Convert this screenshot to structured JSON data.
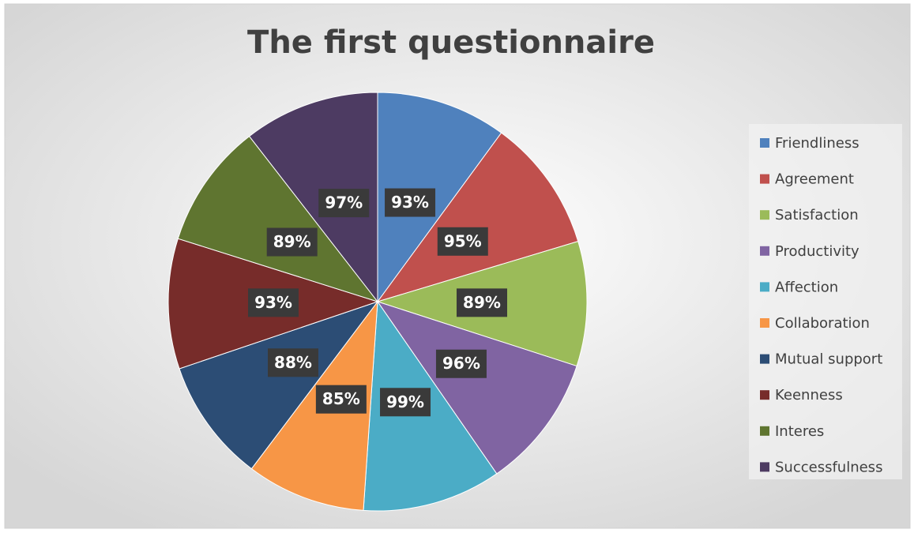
{
  "chart_data": {
    "type": "pie",
    "title": "The first questionnaire",
    "categories": [
      "Friendliness",
      "Agreement",
      "Satisfaction",
      "Productivity",
      "Affection",
      "Collaboration",
      "Mutual support",
      "Keenness",
      "Interes",
      "Successfulness"
    ],
    "values": [
      93,
      95,
      89,
      96,
      99,
      85,
      88,
      93,
      89,
      97
    ],
    "value_labels": [
      "93%",
      "95%",
      "89%",
      "96%",
      "99%",
      "85%",
      "88%",
      "93%",
      "89%",
      "97%"
    ],
    "colors": [
      "#4f81bd",
      "#c0504d",
      "#9bbb59",
      "#8064a2",
      "#4bacc6",
      "#f79646",
      "#2c4d75",
      "#772c2a",
      "#5f7530",
      "#4d3b62"
    ],
    "legend": "right"
  }
}
